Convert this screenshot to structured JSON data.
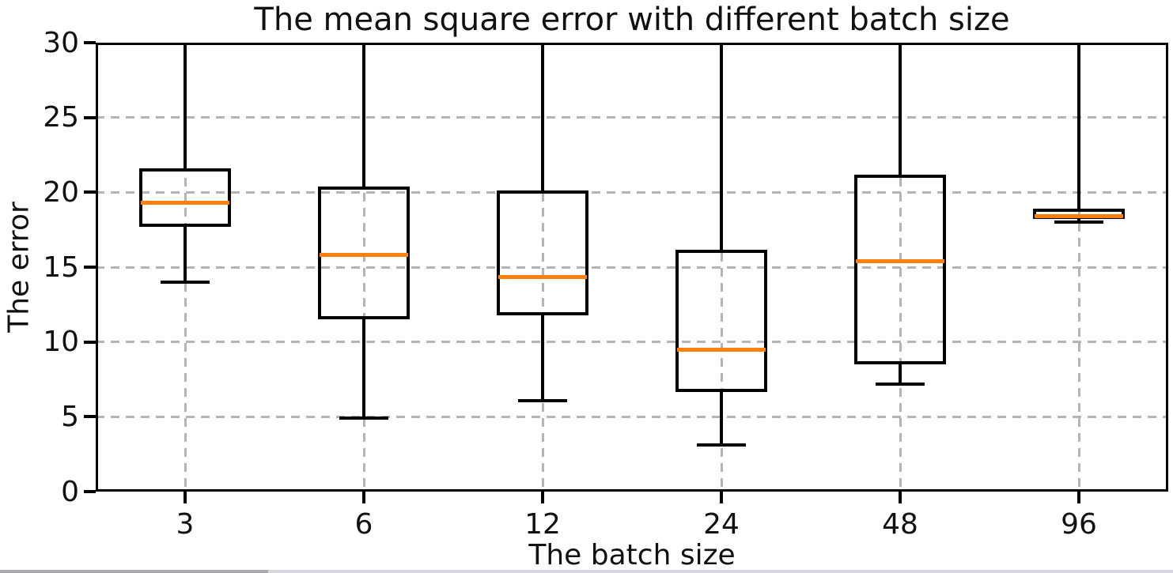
{
  "chart_data": {
    "type": "boxplot",
    "title": "The mean square error with different batch size",
    "xlabel": "The batch size",
    "ylabel": "The error",
    "categories": [
      "3",
      "6",
      "12",
      "24",
      "48",
      "96"
    ],
    "ylim": [
      0,
      30
    ],
    "yticks": [
      0,
      5,
      10,
      15,
      20,
      25,
      30
    ],
    "grid": true,
    "legend": false,
    "boxes": [
      {
        "category": "3",
        "whisker_low": 14.0,
        "q1": 17.7,
        "median": 19.3,
        "q3": 21.6,
        "whisker_high": 30,
        "clipped_high": true
      },
      {
        "category": "6",
        "whisker_low": 4.9,
        "q1": 11.5,
        "median": 15.8,
        "q3": 20.4,
        "whisker_high": 30,
        "clipped_high": true
      },
      {
        "category": "12",
        "whisker_low": 6.1,
        "q1": 11.8,
        "median": 14.35,
        "q3": 20.1,
        "whisker_high": 30,
        "clipped_high": true
      },
      {
        "category": "24",
        "whisker_low": 3.1,
        "q1": 6.65,
        "median": 9.5,
        "q3": 16.15,
        "whisker_high": 30,
        "clipped_high": true
      },
      {
        "category": "48",
        "whisker_low": 7.2,
        "q1": 8.5,
        "median": 15.4,
        "q3": 21.2,
        "whisker_high": 30,
        "clipped_high": true
      },
      {
        "category": "96",
        "whisker_low": 18.0,
        "q1": 18.2,
        "median": 18.4,
        "q3": 18.9,
        "whisker_high": 30,
        "clipped_high": true
      }
    ]
  },
  "colors": {
    "median": "#ff7f0e",
    "box_stroke": "#000000",
    "grid": "#b4b4b4",
    "background": "#ffffff",
    "bottom_bar_left": "#a8a8ad",
    "bottom_bar_right": "#d6d6de"
  }
}
